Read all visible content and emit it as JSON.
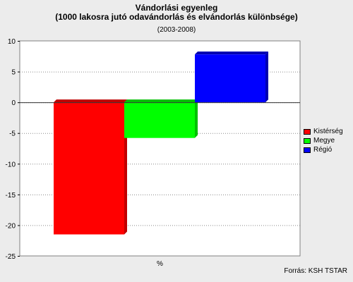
{
  "chart_data": {
    "type": "bar",
    "title_line1": "Vándorlási egyenleg",
    "title_line2": "(1000 lakosra jutó odavándorlás és elvándorlás különbsége)",
    "subtitle": "(2003-2008)",
    "categories": [
      "%"
    ],
    "series": [
      {
        "name": "Kistérség",
        "values": [
          -21.5
        ],
        "color": "#ff0000",
        "side": "#c00000"
      },
      {
        "name": "Megye",
        "values": [
          -5.8
        ],
        "color": "#00ff00",
        "side": "#00c000"
      },
      {
        "name": "Régió",
        "values": [
          7.8
        ],
        "color": "#0000ff",
        "side": "#0000b0"
      }
    ],
    "ylim": [
      -25,
      10
    ],
    "yticks": [
      10,
      5,
      0,
      -5,
      -10,
      -15,
      -20,
      -25
    ],
    "grid": true,
    "legend_position": "right"
  },
  "source": "Forrás: KSH TSTAR"
}
